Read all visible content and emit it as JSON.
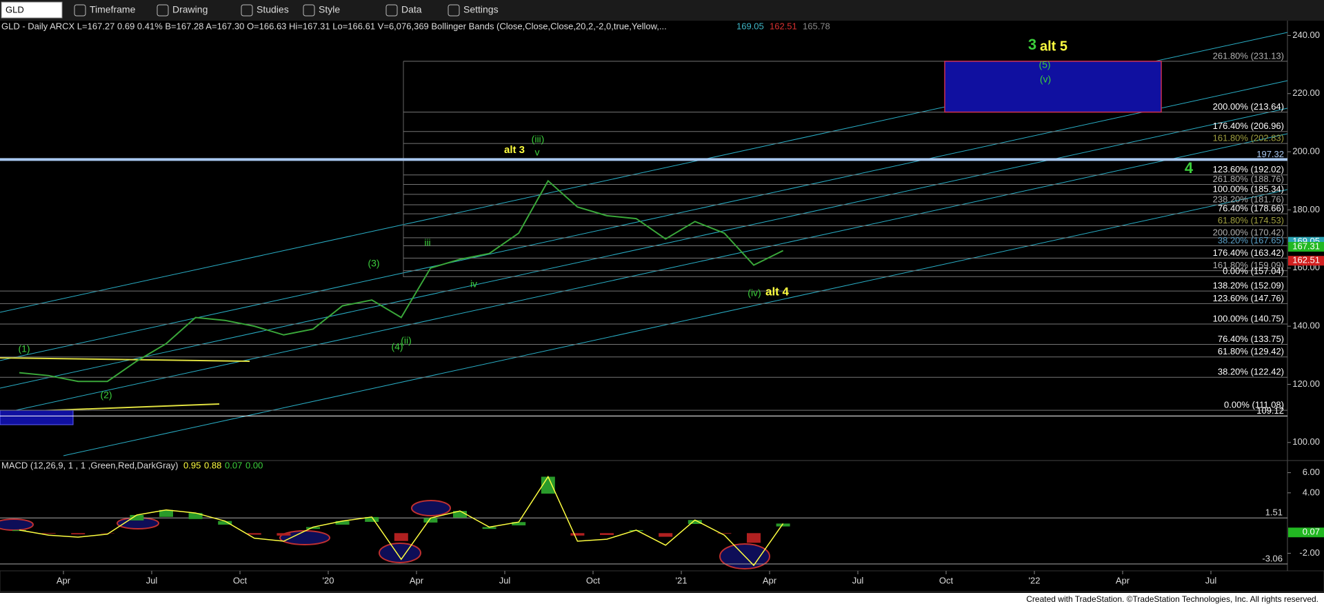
{
  "toolbar": {
    "symbol": "GLD",
    "items": [
      "Timeframe",
      "Drawing",
      "Studies",
      "Style",
      "Data",
      "Settings"
    ]
  },
  "header": {
    "text": "GLD - Daily  ARCX  L=167.27  0.69  0.41%  B=167.28  A=167.30  O=166.63  Hi=167.31  Lo=166.61  V=6,076,369  Bollinger Bands (Close,Close,Close,20,2,-2,0,true,Yellow,...",
    "bb_values": [
      {
        "value": 169.05,
        "color": "#3fb8c8"
      },
      {
        "value": 162.51,
        "color": "#d93030"
      },
      {
        "value": 165.78,
        "color": "#8a8a8a"
      }
    ]
  },
  "price_axis": {
    "ylim": [
      94.5,
      242
    ],
    "ticks": [
      {
        "value": 240,
        "label": "240.00"
      },
      {
        "value": 220,
        "label": "220.00"
      },
      {
        "value": 200,
        "label": "200.00"
      },
      {
        "value": 180,
        "label": "180.00"
      },
      {
        "value": 160,
        "label": "160.00"
      },
      {
        "value": 140,
        "label": "140.00"
      },
      {
        "value": 120,
        "label": "120.00"
      },
      {
        "value": 100,
        "label": "100.00"
      }
    ],
    "markers": [
      {
        "value": 169.05,
        "color": "#2aa5b5"
      },
      {
        "value": 167.31,
        "color": "#22b822"
      },
      {
        "value": 162.51,
        "color": "#d22020"
      }
    ]
  },
  "fib_levels": [
    {
      "label": "261.80% (231.13)",
      "value": 231.13,
      "color": "#b0b0b0"
    },
    {
      "label": "200.00% (213.64)",
      "value": 213.64,
      "color": "#ffffff"
    },
    {
      "label": "176.40% (206.96)",
      "value": 206.96,
      "color": "#ffffff"
    },
    {
      "label": "161.80% (202.83)",
      "value": 202.83,
      "color": "#a0a040"
    },
    {
      "label": "123.60% (192.02)",
      "value": 192.02,
      "color": "#ffffff"
    },
    {
      "label": "261.80% (188.76)",
      "value": 188.76,
      "color": "#b0b0b0"
    },
    {
      "label": "100.00% (185.34)",
      "value": 185.34,
      "color": "#ffffff"
    },
    {
      "label": "238.20% (181.76)",
      "value": 181.76,
      "color": "#b0b0b0"
    },
    {
      "label": "76.40% (178.66)",
      "value": 178.66,
      "color": "#ffffff"
    },
    {
      "label": "61.80% (174.53)",
      "value": 174.53,
      "color": "#a0a040"
    },
    {
      "label": "200.00% (170.42)",
      "value": 170.42,
      "color": "#b0b0b0"
    },
    {
      "label": "38.20% (167.65)",
      "value": 167.65,
      "color": "#5aa0c8"
    },
    {
      "label": "176.40% (163.42)",
      "value": 163.42,
      "color": "#ffffff"
    },
    {
      "label": "161.80% (159.09)",
      "value": 159.09,
      "color": "#b0b0b0"
    },
    {
      "label": "0.00% (157.04)",
      "value": 157.04,
      "color": "#ffffff"
    },
    {
      "label": "138.20% (152.09)",
      "value": 152.09,
      "color": "#ffffff"
    },
    {
      "label": "123.60% (147.76)",
      "value": 147.76,
      "color": "#ffffff"
    },
    {
      "label": "100.00% (140.75)",
      "value": 140.75,
      "color": "#ffffff"
    },
    {
      "label": "76.40% (133.75)",
      "value": 133.75,
      "color": "#ffffff"
    },
    {
      "label": "61.80% (129.42)",
      "value": 129.42,
      "color": "#ffffff"
    },
    {
      "label": "38.20% (122.42)",
      "value": 122.42,
      "color": "#ffffff"
    },
    {
      "label": "0.00% (111.08)",
      "value": 111.08,
      "color": "#ffffff"
    }
  ],
  "price_lines": [
    {
      "value": 197.32,
      "color": "#a8c8f0"
    },
    {
      "value": 109.12,
      "color": "#ffffff"
    }
  ],
  "wave_labels": [
    {
      "text": "(1)",
      "color": "#3ccf3c"
    },
    {
      "text": "(2)",
      "color": "#3ccf3c"
    },
    {
      "text": "(3)",
      "color": "#3ccf3c"
    },
    {
      "text": "(4)",
      "color": "#3ccf3c"
    },
    {
      "text": "(ii)",
      "color": "#3ccf3c"
    },
    {
      "text": "iii",
      "color": "#3ccf3c"
    },
    {
      "text": "iv",
      "color": "#3ccf3c"
    },
    {
      "text": "(iii)",
      "color": "#3ccf3c"
    },
    {
      "text": "v",
      "color": "#3ccf3c"
    },
    {
      "text": "alt 3",
      "color": "#ffff40"
    },
    {
      "text": "(iv)",
      "color": "#3ccf3c"
    },
    {
      "text": "alt 4",
      "color": "#ffff40"
    },
    {
      "text": "3",
      "color": "#3ccf3c"
    },
    {
      "text": "alt 5",
      "color": "#ffff40"
    },
    {
      "text": "(5)",
      "color": "#3ccf3c"
    },
    {
      "text": "(v)",
      "color": "#3ccf3c"
    },
    {
      "text": "4",
      "color": "#3ccf3c"
    }
  ],
  "price": {
    "color": "#3aa83a",
    "values": [
      124,
      123,
      121,
      121,
      128,
      134,
      143,
      142,
      140,
      137,
      139,
      147,
      149,
      143,
      160,
      163,
      165,
      172,
      190,
      181,
      178,
      177,
      170,
      176,
      172,
      161,
      166
    ]
  },
  "macd": {
    "header": "MACD (12,26,9, 1 , 1 ,Green,Red,DarkGray)",
    "header_values": [
      {
        "value": 0.95,
        "color": "#ffff40"
      },
      {
        "value": 0.88,
        "color": "#ffff40"
      },
      {
        "value": 0.07,
        "color": "#3ccf3c"
      },
      {
        "value": {
          "value": 0,
          "label": "0.00"
        },
        "color": "#3ccf3c"
      }
    ],
    "ylim": [
      -3.4,
      7
    ],
    "ticks": [
      {
        "value": 6,
        "label": "6.00"
      },
      {
        "value": 4,
        "label": "4.00"
      },
      {
        "value": -2,
        "label": "-2.00"
      }
    ],
    "levels": [
      1.51,
      -3.06
    ],
    "marker": {
      "value": 0.07,
      "color": "#22b822"
    },
    "values": [
      0.3,
      -0.2,
      -0.4,
      -0.1,
      1.8,
      2.3,
      2.0,
      1.2,
      -0.5,
      -0.8,
      0.6,
      1.2,
      1.6,
      -2.6,
      1.5,
      2.2,
      0.6,
      1.1,
      5.6,
      -0.8,
      -0.6,
      0.3,
      -1.2,
      1.3,
      -0.2,
      -3.2,
      0.95
    ],
    "color": "#ffff40"
  },
  "time_axis": [
    "Apr",
    "Jul",
    "Oct",
    "'20",
    "Apr",
    "Jul",
    "Oct",
    "'21",
    "Apr",
    "Jul",
    "Oct",
    "'22",
    "Apr",
    "Jul"
  ],
  "footer": "Created with TradeStation. ©TradeStation Technologies, Inc. All rights reserved."
}
